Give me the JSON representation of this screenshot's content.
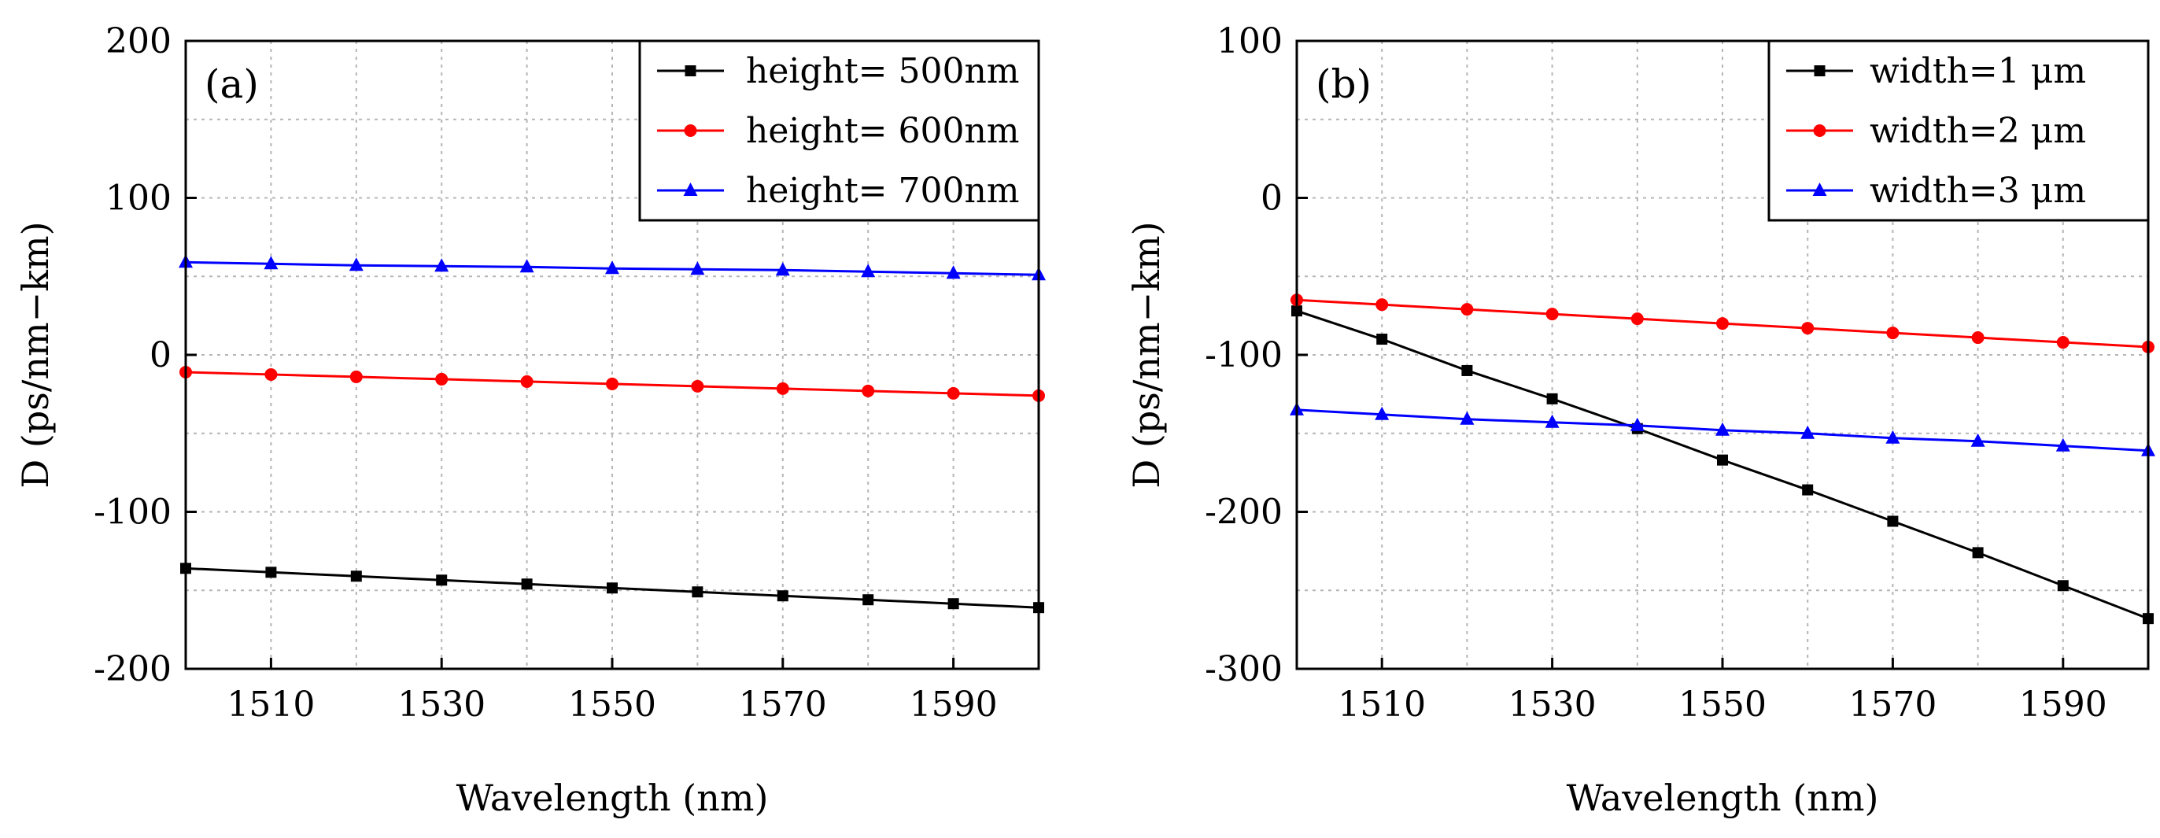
{
  "chart_data": [
    {
      "type": "line",
      "panel_label": "(a)",
      "title": "",
      "xlabel": "Wavelength (nm)",
      "ylabel": "D (ps/nm−km)",
      "xlim": [
        1500,
        1600
      ],
      "ylim": [
        -200,
        200
      ],
      "xticks": [
        1510,
        1530,
        1550,
        1570,
        1590
      ],
      "yticks": [
        -200,
        -100,
        0,
        100,
        200
      ],
      "xtick_labels": [
        "1510",
        "1530",
        "1550",
        "1570",
        "1590"
      ],
      "ytick_labels": [
        "-200",
        "-100",
        "0",
        "100",
        "200"
      ],
      "grid": true,
      "legend_position": "top-right",
      "x": [
        1500,
        1510,
        1520,
        1530,
        1540,
        1550,
        1560,
        1570,
        1580,
        1590,
        1600
      ],
      "series": [
        {
          "name": "height= 500nm",
          "color": "#000000",
          "marker": "square",
          "values": [
            -136,
            -138.5,
            -141,
            -143.5,
            -146,
            -148.5,
            -151,
            -153.5,
            -156,
            -158.5,
            -161
          ]
        },
        {
          "name": "height= 600nm",
          "color": "#ff0000",
          "marker": "circle",
          "values": [
            -11,
            -12.5,
            -14,
            -15.5,
            -17,
            -18.5,
            -20,
            -21.5,
            -23,
            -24.5,
            -26
          ]
        },
        {
          "name": "height= 700nm",
          "color": "#0000ff",
          "marker": "triangle",
          "values": [
            59,
            58,
            57,
            56.5,
            56,
            55,
            54.5,
            54,
            53,
            52,
            51
          ]
        }
      ]
    },
    {
      "type": "line",
      "panel_label": "(b)",
      "title": "",
      "xlabel": "Wavelength (nm)",
      "ylabel": "D (ps/nm−km)",
      "xlim": [
        1500,
        1600
      ],
      "ylim": [
        -300,
        100
      ],
      "xticks": [
        1510,
        1530,
        1550,
        1570,
        1590
      ],
      "yticks": [
        -300,
        -200,
        -100,
        0,
        100
      ],
      "xtick_labels": [
        "1510",
        "1530",
        "1550",
        "1570",
        "1590"
      ],
      "ytick_labels": [
        "-300",
        "-200",
        "-100",
        "0",
        "100"
      ],
      "grid": true,
      "legend_position": "top-right",
      "x": [
        1500,
        1510,
        1520,
        1530,
        1540,
        1550,
        1560,
        1570,
        1580,
        1590,
        1600
      ],
      "series": [
        {
          "name": "width=1 μm",
          "color": "#000000",
          "marker": "square",
          "values": [
            -72,
            -90,
            -110,
            -128,
            -147,
            -167,
            -186,
            -206,
            -226,
            -247,
            -268
          ]
        },
        {
          "name": "width=2 μm",
          "color": "#ff0000",
          "marker": "circle",
          "values": [
            -65,
            -68,
            -71,
            -74,
            -77,
            -80,
            -83,
            -86,
            -89,
            -92,
            -95
          ]
        },
        {
          "name": "width=3 μm",
          "color": "#0000ff",
          "marker": "triangle",
          "values": [
            -135,
            -138,
            -141,
            -143,
            -145,
            -148,
            -150,
            -153,
            -155,
            -158,
            -161
          ]
        }
      ]
    }
  ]
}
